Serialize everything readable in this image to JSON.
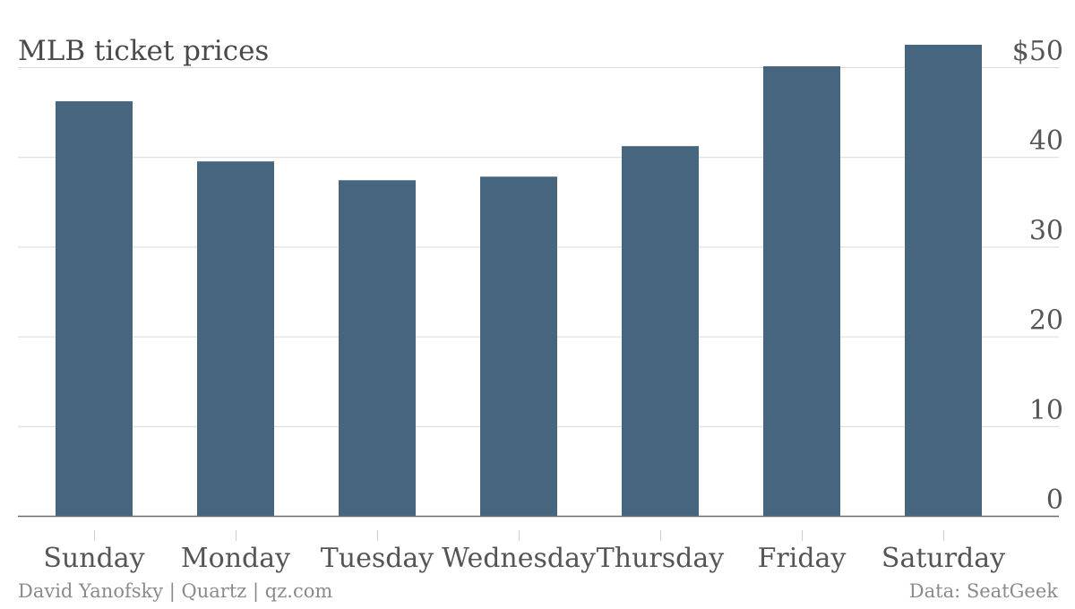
{
  "chart": {
    "title": "MLB ticket prices",
    "credit": "David Yanofsky | Quartz | qz.com",
    "source": "Data: SeatGeek",
    "colors": {
      "bar": "#46667f",
      "grid": "#d9d9d9",
      "axis": "#6b6b6b",
      "text": "#555555",
      "footer": "#8a8a8a"
    }
  },
  "chart_data": {
    "type": "bar",
    "title": "MLB ticket prices",
    "categories": [
      "Sunday",
      "Monday",
      "Tuesday",
      "Wednesday",
      "Thursday",
      "Friday",
      "Saturday"
    ],
    "values": [
      46.2,
      39.5,
      37.4,
      37.8,
      41.2,
      50.1,
      52.5
    ],
    "xlabel": "",
    "ylabel": "",
    "ylim": [
      0,
      54
    ],
    "yticks": [
      0,
      10,
      20,
      30,
      40,
      50
    ],
    "ytick_labels": [
      "0",
      "10",
      "20",
      "30",
      "40",
      "$50"
    ],
    "grid": true,
    "legend": "none"
  }
}
